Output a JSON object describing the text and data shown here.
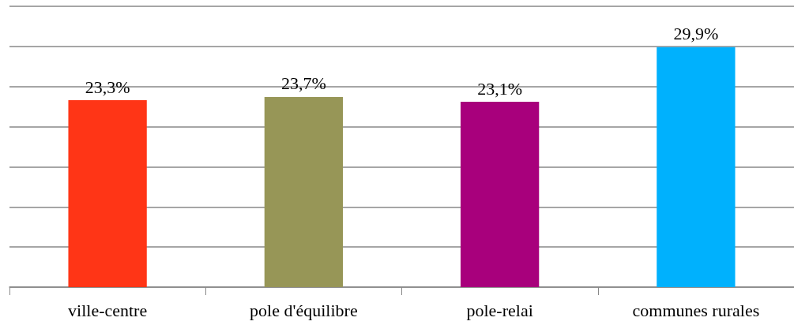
{
  "chart_data": {
    "type": "bar",
    "categories": [
      "ville-centre",
      "pole d'équilibre",
      "pole-relai",
      "communes rurales"
    ],
    "values": [
      23.3,
      23.7,
      23.1,
      29.9
    ],
    "colors": [
      "#ff3516",
      "#979657",
      "#a8007c",
      "#00b1fd"
    ],
    "value_labels": [
      "23,3%",
      "23,7%",
      "23,1%",
      "29,9%"
    ],
    "ylim": [
      0,
      35
    ],
    "yticks": [
      {
        "value": 0,
        "label": null
      },
      {
        "value": 5,
        "label": null
      },
      {
        "value": 10,
        "label": null
      },
      {
        "value": 15,
        "label": null
      },
      {
        "value": 20,
        "label": null
      },
      {
        "value": 25,
        "label": null
      },
      {
        "value": 30,
        "label": null
      },
      {
        "value": 35,
        "label": null
      }
    ],
    "grid": "y",
    "tick_labels": "x"
  }
}
